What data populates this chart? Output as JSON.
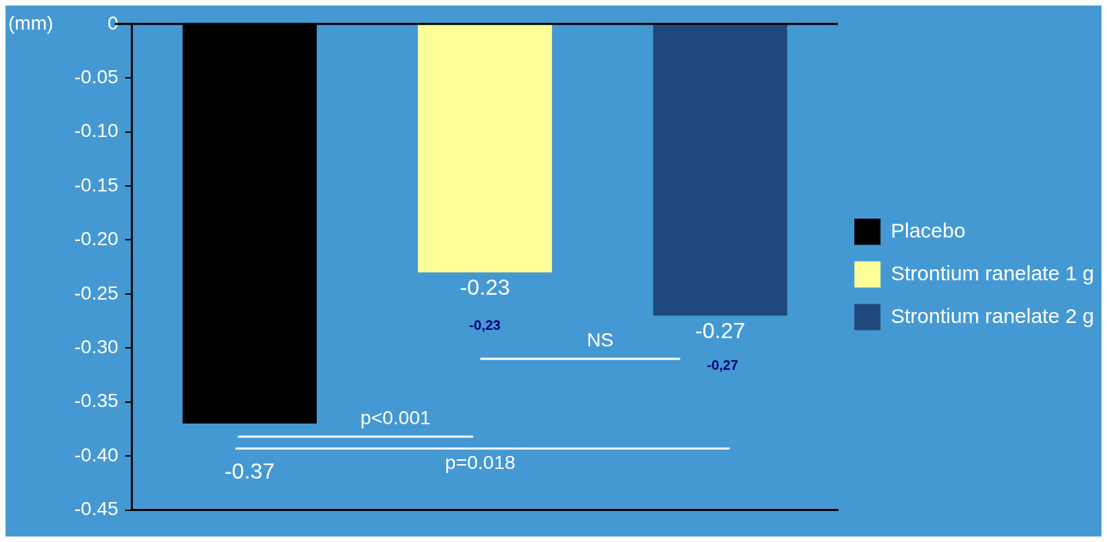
{
  "chart_data": {
    "type": "bar",
    "ylabel": "(mm)",
    "categories": [
      null,
      null,
      null
    ],
    "series": [
      {
        "name": "Placebo",
        "color": "#000000",
        "values": [
          -0.37,
          null,
          null
        ],
        "value_labels": [
          "-0.37",
          null,
          null
        ]
      },
      {
        "name": "Strontium ranelate 1 g",
        "color": "#ffff99",
        "values": [
          null,
          -0.23,
          null
        ],
        "value_labels": [
          null,
          "-0.23",
          null
        ]
      },
      {
        "name": "Strontium ranelate 2 g",
        "color": "#1f497d",
        "values": [
          null,
          null,
          -0.27
        ],
        "value_labels": [
          null,
          null,
          "-0.27"
        ]
      }
    ],
    "ylim": [
      -0.45,
      0
    ],
    "yticks": [
      0,
      -0.05,
      {
        "value": -0.1,
        "label": "-0.10"
      },
      -0.15,
      {
        "value": -0.2,
        "label": "-0.20"
      },
      -0.25,
      {
        "value": -0.3,
        "label": "-0.30"
      },
      -0.35,
      {
        "value": -0.4,
        "label": "-0.40"
      },
      -0.45
    ],
    "annotations": [
      "NS",
      "p<0.001",
      "p=0.018",
      "-0,23",
      "-0,27"
    ],
    "legend": "right",
    "grid": false
  }
}
